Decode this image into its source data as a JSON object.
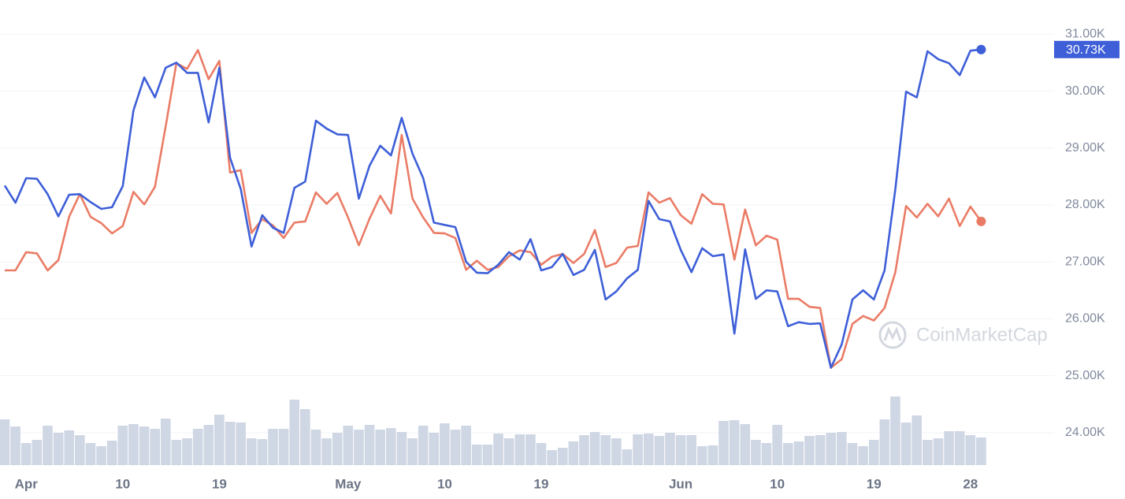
{
  "chart_data": {
    "type": "line",
    "categories": [
      null,
      null,
      "Apr",
      null,
      null,
      null,
      null,
      null,
      null,
      null,
      null,
      "10",
      null,
      null,
      null,
      null,
      null,
      null,
      null,
      null,
      "19",
      null,
      null,
      null,
      null,
      null,
      null,
      null,
      null,
      null,
      null,
      null,
      "May",
      null,
      null,
      null,
      null,
      null,
      null,
      null,
      null,
      "10",
      null,
      null,
      null,
      null,
      null,
      null,
      null,
      null,
      "19",
      null,
      null,
      null,
      null,
      null,
      null,
      null,
      null,
      null,
      null,
      null,
      null,
      "Jun",
      null,
      null,
      null,
      null,
      null,
      null,
      null,
      null,
      "10",
      null,
      null,
      null,
      null,
      null,
      null,
      null,
      null,
      "19",
      null,
      null,
      null,
      null,
      null,
      null,
      null,
      null,
      "28",
      null
    ],
    "series": [
      {
        "color": "#3e5fd8",
        "values": [
          28340,
          28040,
          28470,
          28460,
          28190,
          27800,
          28180,
          28190,
          28050,
          27930,
          27960,
          28330,
          29660,
          30240,
          29890,
          30410,
          30500,
          30320,
          30320,
          29450,
          30410,
          28830,
          28280,
          27270,
          27820,
          27600,
          27510,
          28300,
          28410,
          29480,
          29340,
          29240,
          29230,
          28110,
          28690,
          29040,
          28870,
          29530,
          28900,
          28470,
          27690,
          27650,
          27610,
          27000,
          26810,
          26800,
          26950,
          27170,
          27040,
          27400,
          26850,
          26910,
          27140,
          26770,
          26860,
          27210,
          26340,
          26480,
          26710,
          26860,
          28070,
          27750,
          27710,
          27210,
          26820,
          27240,
          27100,
          27130,
          25740,
          27220,
          26350,
          26500,
          26480,
          25870,
          25940,
          25910,
          25920,
          25140,
          25550,
          26340,
          26500,
          26340,
          26850,
          28280,
          29990,
          29890,
          30700,
          30560,
          30490,
          30280,
          30710,
          30730
        ]
      },
      {
        "color": "#ea7c66",
        "values": [
          26850,
          26850,
          27170,
          27150,
          26850,
          27030,
          27790,
          28190,
          27790,
          27680,
          27500,
          27630,
          28230,
          28010,
          28320,
          29380,
          30490,
          30390,
          30720,
          30210,
          30530,
          28570,
          28610,
          27510,
          27750,
          27640,
          27420,
          27690,
          27710,
          28220,
          28020,
          28210,
          27780,
          27290,
          27760,
          28160,
          27850,
          29230,
          28110,
          27780,
          27510,
          27500,
          27420,
          26860,
          27020,
          26860,
          26910,
          27100,
          27200,
          27170,
          26950,
          27090,
          27140,
          26980,
          27140,
          27560,
          26910,
          26980,
          27250,
          27280,
          28220,
          28040,
          28120,
          27820,
          27670,
          28190,
          28020,
          28010,
          27040,
          27920,
          27290,
          27460,
          27390,
          26350,
          26350,
          26210,
          26190,
          25140,
          25290,
          25910,
          26050,
          25970,
          26190,
          26820,
          27980,
          27780,
          28020,
          27800,
          28110,
          27630,
          27970,
          27710
        ]
      }
    ],
    "volume": {
      "color": "#cfd6e4",
      "ylim": [
        0,
        100
      ],
      "values": [
        58,
        49,
        28,
        32,
        50,
        41,
        44,
        38,
        28,
        24,
        31,
        50,
        52,
        49,
        46,
        59,
        32,
        34,
        46,
        51,
        64,
        55,
        54,
        34,
        33,
        46,
        46,
        83,
        71,
        45,
        34,
        41,
        50,
        45,
        51,
        45,
        47,
        42,
        34,
        50,
        41,
        53,
        45,
        50,
        26,
        26,
        40,
        34,
        39,
        39,
        28,
        19,
        22,
        30,
        38,
        42,
        38,
        34,
        20,
        39,
        40,
        37,
        41,
        38,
        38,
        24,
        25,
        56,
        57,
        52,
        32,
        28,
        51,
        28,
        30,
        37,
        38,
        41,
        42,
        28,
        24,
        32,
        58,
        87,
        54,
        63,
        32,
        34,
        43,
        43,
        38,
        35
      ]
    },
    "ylim": [
      23430,
      31600
    ],
    "yticks": [
      {
        "value": 24000,
        "label": "24.00K"
      },
      {
        "value": 25000,
        "label": "25.00K"
      },
      {
        "value": 26000,
        "label": "26.00K"
      },
      {
        "value": 27000,
        "label": "27.00K"
      },
      {
        "value": 28000,
        "label": "28.00K"
      },
      {
        "value": 29000,
        "label": "29.00K"
      },
      {
        "value": 30000,
        "label": "30.00K"
      },
      {
        "value": 31000,
        "label": "31.00K"
      }
    ],
    "grid": true,
    "price_tag": {
      "value": 30730,
      "label": "30.73K"
    },
    "watermark": "CoinMarketCap"
  }
}
